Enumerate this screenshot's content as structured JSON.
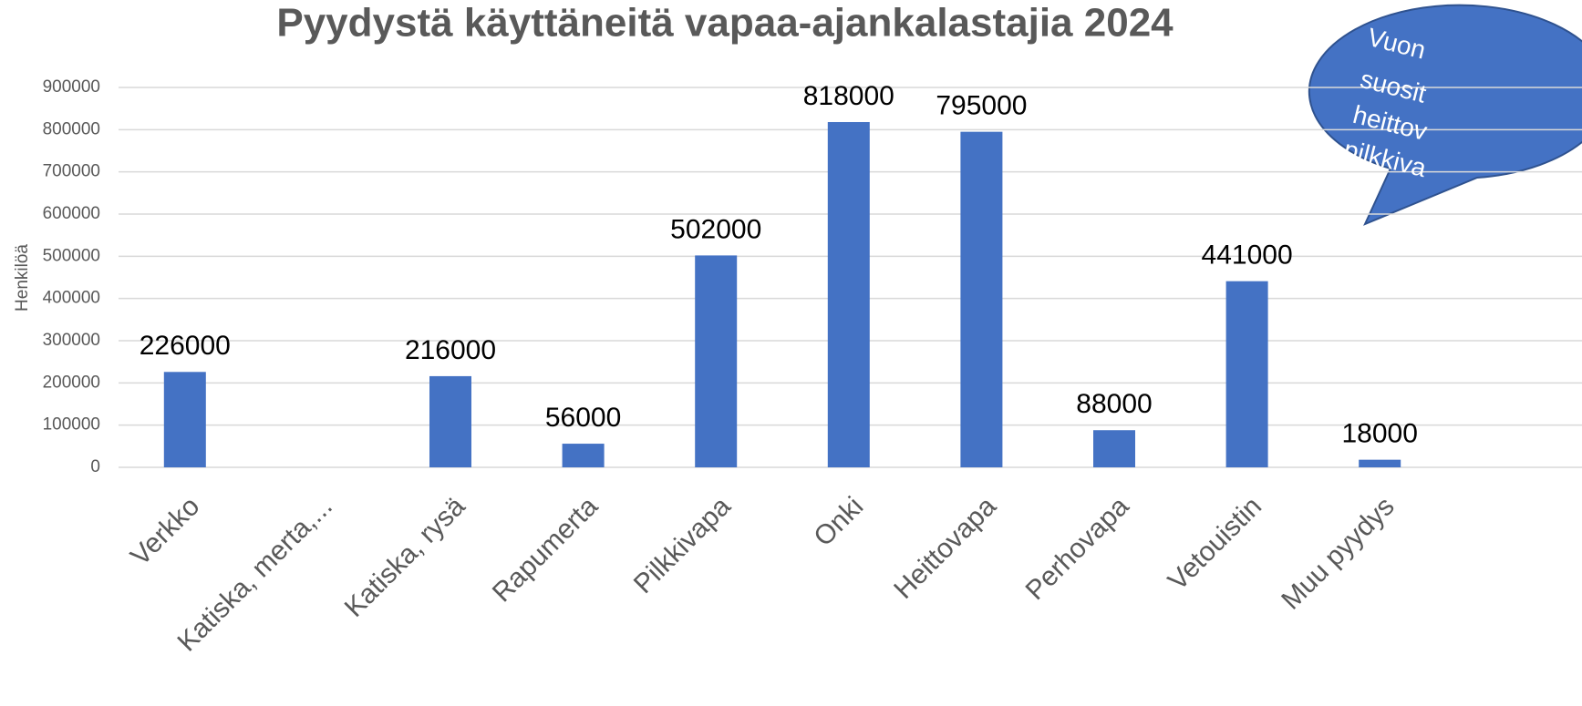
{
  "chart_data": {
    "type": "bar",
    "title": "Pyydystä käyttäneitä vapaa-ajankalastajia 2024",
    "y_label": "Henkilöä",
    "categories": [
      "Verkko",
      "Katiska, merta,...",
      "Katiska, rysä",
      "Rapumerta",
      "Pilkkivapa",
      "Onki",
      "Heittovapa",
      "Perhovapa",
      "Vetouistin",
      "Muu pyydys"
    ],
    "values": [
      226000,
      null,
      216000,
      56000,
      502000,
      818000,
      795000,
      88000,
      441000,
      18000
    ],
    "color": "#4472c4",
    "ylim": [
      0,
      900000
    ],
    "yticks": [
      0,
      100000,
      200000,
      300000,
      400000,
      500000,
      600000,
      700000,
      800000,
      900000
    ],
    "grid": true,
    "annotation": [
      "Vuon",
      "suosit",
      "heittov",
      "pilkkiva"
    ]
  }
}
